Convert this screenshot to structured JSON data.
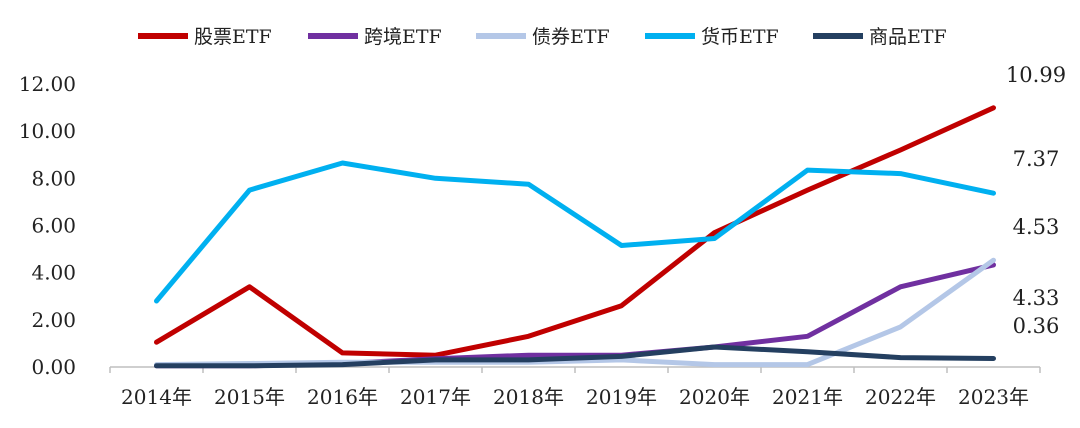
{
  "chart_data": {
    "type": "line",
    "categories": [
      "2014年",
      "2015年",
      "2016年",
      "2017年",
      "2018年",
      "2019年",
      "2020年",
      "2021年",
      "2022年",
      "2023年"
    ],
    "ylim": [
      0,
      12
    ],
    "yticks": [
      "0.00",
      "2.00",
      "4.00",
      "6.00",
      "8.00",
      "10.00",
      "12.00"
    ],
    "legend_position": "top",
    "series": [
      {
        "name": "股票ETF",
        "color": "#c00000",
        "values": [
          1.05,
          3.4,
          0.6,
          0.5,
          1.3,
          2.6,
          5.7,
          7.5,
          9.2,
          10.99
        ]
      },
      {
        "name": "跨境ETF",
        "color": "#7030a0",
        "values": [
          0.05,
          0.05,
          0.15,
          0.35,
          0.5,
          0.5,
          0.85,
          1.3,
          3.4,
          4.33
        ]
      },
      {
        "name": "债券ETF",
        "color": "#b4c7e7",
        "values": [
          0.1,
          0.15,
          0.2,
          0.2,
          0.2,
          0.3,
          0.1,
          0.1,
          1.7,
          4.53
        ]
      },
      {
        "name": "货币ETF",
        "color": "#00b0f0",
        "values": [
          2.8,
          7.5,
          8.65,
          8.0,
          7.75,
          5.15,
          5.45,
          8.35,
          8.2,
          7.37
        ]
      },
      {
        "name": "商品ETF",
        "color": "#243f60",
        "values": [
          0.05,
          0.05,
          0.1,
          0.3,
          0.3,
          0.45,
          0.85,
          0.65,
          0.4,
          0.36
        ]
      }
    ],
    "data_labels": [
      {
        "text": "10.99",
        "series": 0
      },
      {
        "text": "7.37",
        "series": 3
      },
      {
        "text": "4.53",
        "series": 2
      },
      {
        "text": "4.33",
        "series": 1
      },
      {
        "text": "0.36",
        "series": 4
      }
    ]
  }
}
